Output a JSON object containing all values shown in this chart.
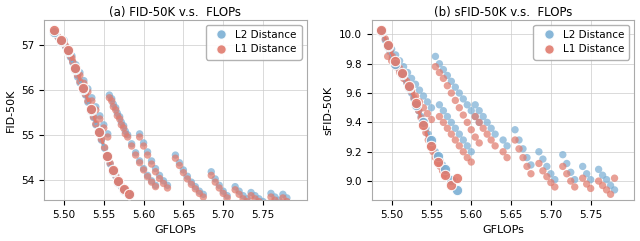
{
  "title_a": "(a) FID-50K v.s.  FLOPs",
  "title_b": "(b) sFID-50K v.s.  FLOPs",
  "xlabel": "GFLOPs",
  "ylabel_a": "FID-50K",
  "ylabel_b": "sFID-50K",
  "xlim": [
    5.475,
    5.805
  ],
  "ylim_a": [
    53.55,
    57.55
  ],
  "ylim_b": [
    8.87,
    10.1
  ],
  "xticks": [
    5.5,
    5.55,
    5.6,
    5.65,
    5.7,
    5.75
  ],
  "yticks_a": [
    54.0,
    55.0,
    56.0,
    57.0
  ],
  "yticks_b": [
    9.0,
    9.2,
    9.4,
    9.6,
    9.8,
    10.0
  ],
  "color_l2": "#7bafd4",
  "color_l1": "#e07b6e",
  "marker_size": 28,
  "alpha": 0.72,
  "legend_labels": [
    "L2 Distance",
    "L1 Distance"
  ],
  "l2_scatter_a": [
    [
      5.487,
      57.28
    ],
    [
      5.493,
      57.15
    ],
    [
      5.496,
      57.08
    ],
    [
      5.499,
      57.02
    ],
    [
      5.502,
      56.95
    ],
    [
      5.505,
      56.85
    ],
    [
      5.508,
      56.72
    ],
    [
      5.511,
      56.6
    ],
    [
      5.514,
      56.45
    ],
    [
      5.517,
      56.28
    ],
    [
      5.52,
      56.15
    ],
    [
      5.524,
      56.02
    ],
    [
      5.527,
      55.88
    ],
    [
      5.53,
      55.72
    ],
    [
      5.534,
      55.55
    ],
    [
      5.537,
      55.38
    ],
    [
      5.54,
      55.22
    ],
    [
      5.544,
      55.05
    ],
    [
      5.547,
      54.88
    ],
    [
      5.551,
      54.7
    ],
    [
      5.554,
      54.52
    ],
    [
      5.558,
      54.35
    ],
    [
      5.561,
      54.2
    ],
    [
      5.565,
      54.08
    ],
    [
      5.568,
      53.95
    ],
    [
      5.572,
      53.85
    ],
    [
      5.575,
      53.78
    ],
    [
      5.579,
      53.72
    ],
    [
      5.582,
      53.68
    ],
    [
      5.5,
      57.1
    ],
    [
      5.505,
      56.92
    ],
    [
      5.51,
      56.75
    ],
    [
      5.515,
      56.55
    ],
    [
      5.52,
      56.38
    ],
    [
      5.525,
      56.2
    ],
    [
      5.53,
      56.02
    ],
    [
      5.535,
      55.82
    ],
    [
      5.54,
      55.62
    ],
    [
      5.545,
      55.42
    ],
    [
      5.55,
      55.22
    ],
    [
      5.555,
      55.02
    ],
    [
      5.56,
      55.8
    ],
    [
      5.565,
      55.6
    ],
    [
      5.57,
      55.4
    ],
    [
      5.575,
      55.2
    ],
    [
      5.58,
      55.0
    ],
    [
      5.585,
      54.8
    ],
    [
      5.59,
      54.6
    ],
    [
      5.595,
      54.42
    ],
    [
      5.6,
      54.25
    ],
    [
      5.605,
      54.1
    ],
    [
      5.61,
      53.98
    ],
    [
      5.615,
      53.88
    ],
    [
      5.557,
      55.88
    ],
    [
      5.562,
      55.68
    ],
    [
      5.567,
      55.48
    ],
    [
      5.572,
      55.28
    ],
    [
      5.577,
      55.08
    ],
    [
      5.595,
      55.02
    ],
    [
      5.6,
      54.82
    ],
    [
      5.605,
      54.62
    ],
    [
      5.61,
      54.42
    ],
    [
      5.615,
      54.25
    ],
    [
      5.62,
      54.1
    ],
    [
      5.625,
      53.98
    ],
    [
      5.63,
      53.88
    ],
    [
      5.64,
      54.55
    ],
    [
      5.645,
      54.38
    ],
    [
      5.65,
      54.22
    ],
    [
      5.655,
      54.08
    ],
    [
      5.66,
      53.95
    ],
    [
      5.665,
      53.85
    ],
    [
      5.67,
      53.75
    ],
    [
      5.675,
      53.68
    ],
    [
      5.685,
      54.18
    ],
    [
      5.69,
      54.02
    ],
    [
      5.695,
      53.88
    ],
    [
      5.7,
      53.75
    ],
    [
      5.705,
      53.65
    ],
    [
      5.715,
      53.85
    ],
    [
      5.72,
      53.75
    ],
    [
      5.725,
      53.65
    ],
    [
      5.73,
      53.58
    ],
    [
      5.735,
      53.72
    ],
    [
      5.74,
      53.65
    ],
    [
      5.745,
      53.58
    ],
    [
      5.75,
      53.52
    ],
    [
      5.76,
      53.7
    ],
    [
      5.765,
      53.62
    ],
    [
      5.77,
      53.55
    ],
    [
      5.775,
      53.68
    ],
    [
      5.78,
      53.6
    ]
  ],
  "l1_scatter_a": [
    [
      5.487,
      57.32
    ],
    [
      5.492,
      57.18
    ],
    [
      5.496,
      57.1
    ],
    [
      5.499,
      57.04
    ],
    [
      5.502,
      56.97
    ],
    [
      5.505,
      56.88
    ],
    [
      5.508,
      56.75
    ],
    [
      5.511,
      56.62
    ],
    [
      5.514,
      56.48
    ],
    [
      5.517,
      56.32
    ],
    [
      5.52,
      56.18
    ],
    [
      5.524,
      56.04
    ],
    [
      5.527,
      55.9
    ],
    [
      5.53,
      55.75
    ],
    [
      5.534,
      55.58
    ],
    [
      5.537,
      55.4
    ],
    [
      5.54,
      55.24
    ],
    [
      5.544,
      55.07
    ],
    [
      5.547,
      54.9
    ],
    [
      5.551,
      54.72
    ],
    [
      5.554,
      54.54
    ],
    [
      5.558,
      54.37
    ],
    [
      5.561,
      54.22
    ],
    [
      5.565,
      54.1
    ],
    [
      5.568,
      53.97
    ],
    [
      5.572,
      53.87
    ],
    [
      5.575,
      53.8
    ],
    [
      5.579,
      53.73
    ],
    [
      5.582,
      53.68
    ],
    [
      5.5,
      57.05
    ],
    [
      5.505,
      56.88
    ],
    [
      5.51,
      56.7
    ],
    [
      5.515,
      56.5
    ],
    [
      5.52,
      56.32
    ],
    [
      5.525,
      56.14
    ],
    [
      5.53,
      55.95
    ],
    [
      5.535,
      55.75
    ],
    [
      5.54,
      55.55
    ],
    [
      5.545,
      55.35
    ],
    [
      5.55,
      55.15
    ],
    [
      5.555,
      54.95
    ],
    [
      5.56,
      55.75
    ],
    [
      5.565,
      55.55
    ],
    [
      5.57,
      55.35
    ],
    [
      5.575,
      55.15
    ],
    [
      5.58,
      54.95
    ],
    [
      5.585,
      54.75
    ],
    [
      5.59,
      54.55
    ],
    [
      5.595,
      54.38
    ],
    [
      5.6,
      54.22
    ],
    [
      5.605,
      54.07
    ],
    [
      5.61,
      53.95
    ],
    [
      5.615,
      53.85
    ],
    [
      5.557,
      55.82
    ],
    [
      5.562,
      55.62
    ],
    [
      5.567,
      55.42
    ],
    [
      5.572,
      55.22
    ],
    [
      5.577,
      55.02
    ],
    [
      5.595,
      54.95
    ],
    [
      5.6,
      54.75
    ],
    [
      5.605,
      54.55
    ],
    [
      5.61,
      54.35
    ],
    [
      5.615,
      54.18
    ],
    [
      5.62,
      54.03
    ],
    [
      5.625,
      53.92
    ],
    [
      5.63,
      53.82
    ],
    [
      5.64,
      54.48
    ],
    [
      5.645,
      54.32
    ],
    [
      5.65,
      54.16
    ],
    [
      5.655,
      54.02
    ],
    [
      5.66,
      53.9
    ],
    [
      5.665,
      53.8
    ],
    [
      5.67,
      53.7
    ],
    [
      5.675,
      53.62
    ],
    [
      5.685,
      54.1
    ],
    [
      5.69,
      53.95
    ],
    [
      5.695,
      53.82
    ],
    [
      5.7,
      53.7
    ],
    [
      5.705,
      53.6
    ],
    [
      5.715,
      53.78
    ],
    [
      5.72,
      53.68
    ],
    [
      5.725,
      53.58
    ],
    [
      5.73,
      53.52
    ],
    [
      5.735,
      53.65
    ],
    [
      5.74,
      53.58
    ],
    [
      5.745,
      53.52
    ],
    [
      5.75,
      53.46
    ],
    [
      5.76,
      53.62
    ],
    [
      5.765,
      53.55
    ],
    [
      5.77,
      53.48
    ],
    [
      5.775,
      53.6
    ],
    [
      5.78,
      53.52
    ]
  ],
  "l2_pareto_a": [
    [
      5.487,
      57.28
    ],
    [
      5.496,
      57.08
    ],
    [
      5.505,
      56.85
    ],
    [
      5.514,
      56.45
    ],
    [
      5.524,
      56.02
    ],
    [
      5.534,
      55.55
    ],
    [
      5.544,
      55.05
    ],
    [
      5.554,
      54.52
    ],
    [
      5.561,
      54.2
    ],
    [
      5.568,
      53.95
    ],
    [
      5.575,
      53.78
    ],
    [
      5.582,
      53.68
    ]
  ],
  "l1_pareto_a": [
    [
      5.487,
      57.32
    ],
    [
      5.496,
      57.1
    ],
    [
      5.505,
      56.88
    ],
    [
      5.514,
      56.48
    ],
    [
      5.524,
      56.04
    ],
    [
      5.534,
      55.58
    ],
    [
      5.544,
      55.07
    ],
    [
      5.554,
      54.54
    ],
    [
      5.561,
      54.22
    ],
    [
      5.568,
      53.97
    ],
    [
      5.575,
      53.8
    ],
    [
      5.582,
      53.68
    ]
  ],
  "l2_scatter_b": [
    [
      5.487,
      10.02
    ],
    [
      5.492,
      9.96
    ],
    [
      5.495,
      9.92
    ],
    [
      5.498,
      9.88
    ],
    [
      5.501,
      9.84
    ],
    [
      5.504,
      9.8
    ],
    [
      5.507,
      9.78
    ],
    [
      5.51,
      9.76
    ],
    [
      5.513,
      9.73
    ],
    [
      5.516,
      9.7
    ],
    [
      5.519,
      9.67
    ],
    [
      5.522,
      9.64
    ],
    [
      5.525,
      9.6
    ],
    [
      5.528,
      9.56
    ],
    [
      5.531,
      9.52
    ],
    [
      5.534,
      9.48
    ],
    [
      5.537,
      9.44
    ],
    [
      5.54,
      9.4
    ],
    [
      5.543,
      9.36
    ],
    [
      5.546,
      9.32
    ],
    [
      5.549,
      9.28
    ],
    [
      5.552,
      9.24
    ],
    [
      5.555,
      9.2
    ],
    [
      5.558,
      9.17
    ],
    [
      5.561,
      9.14
    ],
    [
      5.564,
      9.11
    ],
    [
      5.567,
      9.08
    ],
    [
      5.495,
      9.94
    ],
    [
      5.5,
      9.9
    ],
    [
      5.505,
      9.86
    ],
    [
      5.51,
      9.82
    ],
    [
      5.515,
      9.78
    ],
    [
      5.52,
      9.74
    ],
    [
      5.525,
      9.7
    ],
    [
      5.53,
      9.66
    ],
    [
      5.535,
      9.62
    ],
    [
      5.54,
      9.58
    ],
    [
      5.545,
      9.54
    ],
    [
      5.55,
      9.5
    ],
    [
      5.555,
      9.85
    ],
    [
      5.56,
      9.8
    ],
    [
      5.565,
      9.76
    ],
    [
      5.57,
      9.72
    ],
    [
      5.575,
      9.68
    ],
    [
      5.58,
      9.64
    ],
    [
      5.585,
      9.6
    ],
    [
      5.59,
      9.56
    ],
    [
      5.595,
      9.52
    ],
    [
      5.6,
      9.48
    ],
    [
      5.605,
      9.44
    ],
    [
      5.61,
      9.4
    ],
    [
      5.56,
      9.52
    ],
    [
      5.565,
      9.48
    ],
    [
      5.57,
      9.44
    ],
    [
      5.575,
      9.4
    ],
    [
      5.58,
      9.36
    ],
    [
      5.585,
      9.32
    ],
    [
      5.59,
      9.28
    ],
    [
      5.595,
      9.24
    ],
    [
      5.6,
      9.2
    ],
    [
      5.605,
      9.52
    ],
    [
      5.61,
      9.48
    ],
    [
      5.615,
      9.44
    ],
    [
      5.62,
      9.4
    ],
    [
      5.625,
      9.36
    ],
    [
      5.63,
      9.32
    ],
    [
      5.64,
      9.28
    ],
    [
      5.645,
      9.24
    ],
    [
      5.655,
      9.35
    ],
    [
      5.66,
      9.28
    ],
    [
      5.665,
      9.22
    ],
    [
      5.67,
      9.16
    ],
    [
      5.675,
      9.11
    ],
    [
      5.685,
      9.2
    ],
    [
      5.69,
      9.15
    ],
    [
      5.695,
      9.1
    ],
    [
      5.7,
      9.05
    ],
    [
      5.705,
      9.01
    ],
    [
      5.715,
      9.18
    ],
    [
      5.72,
      9.12
    ],
    [
      5.725,
      9.06
    ],
    [
      5.73,
      9.01
    ],
    [
      5.74,
      9.1
    ],
    [
      5.745,
      9.05
    ],
    [
      5.75,
      9.01
    ],
    [
      5.76,
      9.08
    ],
    [
      5.765,
      9.04
    ],
    [
      5.77,
      9.01
    ],
    [
      5.775,
      8.97
    ],
    [
      5.78,
      8.94
    ]
  ],
  "l1_scatter_b": [
    [
      5.487,
      10.03
    ],
    [
      5.492,
      9.97
    ],
    [
      5.495,
      9.93
    ],
    [
      5.498,
      9.89
    ],
    [
      5.501,
      9.85
    ],
    [
      5.504,
      9.82
    ],
    [
      5.507,
      9.79
    ],
    [
      5.51,
      9.77
    ],
    [
      5.513,
      9.74
    ],
    [
      5.516,
      9.71
    ],
    [
      5.519,
      9.68
    ],
    [
      5.522,
      9.65
    ],
    [
      5.525,
      9.61
    ],
    [
      5.528,
      9.57
    ],
    [
      5.531,
      9.53
    ],
    [
      5.534,
      9.48
    ],
    [
      5.537,
      9.43
    ],
    [
      5.54,
      9.38
    ],
    [
      5.543,
      9.33
    ],
    [
      5.546,
      9.28
    ],
    [
      5.549,
      9.24
    ],
    [
      5.552,
      9.2
    ],
    [
      5.555,
      9.16
    ],
    [
      5.558,
      9.13
    ],
    [
      5.561,
      9.1
    ],
    [
      5.564,
      9.07
    ],
    [
      5.567,
      9.04
    ],
    [
      5.495,
      9.85
    ],
    [
      5.5,
      9.82
    ],
    [
      5.505,
      9.78
    ],
    [
      5.51,
      9.74
    ],
    [
      5.515,
      9.7
    ],
    [
      5.52,
      9.66
    ],
    [
      5.525,
      9.62
    ],
    [
      5.53,
      9.58
    ],
    [
      5.535,
      9.54
    ],
    [
      5.54,
      9.5
    ],
    [
      5.545,
      9.46
    ],
    [
      5.55,
      9.42
    ],
    [
      5.555,
      9.78
    ],
    [
      5.56,
      9.74
    ],
    [
      5.565,
      9.7
    ],
    [
      5.57,
      9.65
    ],
    [
      5.575,
      9.6
    ],
    [
      5.58,
      9.55
    ],
    [
      5.585,
      9.5
    ],
    [
      5.59,
      9.45
    ],
    [
      5.595,
      9.4
    ],
    [
      5.6,
      9.35
    ],
    [
      5.605,
      9.3
    ],
    [
      5.61,
      9.26
    ],
    [
      5.56,
      9.44
    ],
    [
      5.565,
      9.4
    ],
    [
      5.57,
      9.36
    ],
    [
      5.575,
      9.32
    ],
    [
      5.58,
      9.28
    ],
    [
      5.585,
      9.24
    ],
    [
      5.59,
      9.2
    ],
    [
      5.595,
      9.16
    ],
    [
      5.6,
      9.13
    ],
    [
      5.605,
      9.44
    ],
    [
      5.61,
      9.4
    ],
    [
      5.615,
      9.36
    ],
    [
      5.62,
      9.32
    ],
    [
      5.625,
      9.28
    ],
    [
      5.63,
      9.24
    ],
    [
      5.64,
      9.2
    ],
    [
      5.645,
      9.16
    ],
    [
      5.655,
      9.28
    ],
    [
      5.66,
      9.22
    ],
    [
      5.665,
      9.16
    ],
    [
      5.67,
      9.1
    ],
    [
      5.675,
      9.05
    ],
    [
      5.685,
      9.12
    ],
    [
      5.69,
      9.07
    ],
    [
      5.695,
      9.03
    ],
    [
      5.7,
      8.99
    ],
    [
      5.705,
      8.96
    ],
    [
      5.715,
      9.1
    ],
    [
      5.72,
      9.05
    ],
    [
      5.725,
      9.0
    ],
    [
      5.73,
      8.96
    ],
    [
      5.74,
      9.02
    ],
    [
      5.745,
      8.98
    ],
    [
      5.75,
      8.95
    ],
    [
      5.76,
      9.0
    ],
    [
      5.765,
      8.97
    ],
    [
      5.77,
      8.94
    ],
    [
      5.775,
      8.91
    ],
    [
      5.78,
      9.02
    ]
  ],
  "l2_pareto_b": [
    [
      5.487,
      10.02
    ],
    [
      5.495,
      9.92
    ],
    [
      5.504,
      9.8
    ],
    [
      5.513,
      9.73
    ],
    [
      5.522,
      9.64
    ],
    [
      5.531,
      9.52
    ],
    [
      5.54,
      9.4
    ],
    [
      5.549,
      9.28
    ],
    [
      5.558,
      9.17
    ],
    [
      5.567,
      9.08
    ],
    [
      5.575,
      9.01
    ],
    [
      5.582,
      8.94
    ]
  ],
  "l1_pareto_b": [
    [
      5.487,
      10.03
    ],
    [
      5.495,
      9.93
    ],
    [
      5.504,
      9.82
    ],
    [
      5.513,
      9.74
    ],
    [
      5.522,
      9.65
    ],
    [
      5.531,
      9.53
    ],
    [
      5.54,
      9.38
    ],
    [
      5.549,
      9.24
    ],
    [
      5.558,
      9.13
    ],
    [
      5.567,
      9.04
    ],
    [
      5.575,
      8.97
    ],
    [
      5.582,
      9.02
    ]
  ]
}
